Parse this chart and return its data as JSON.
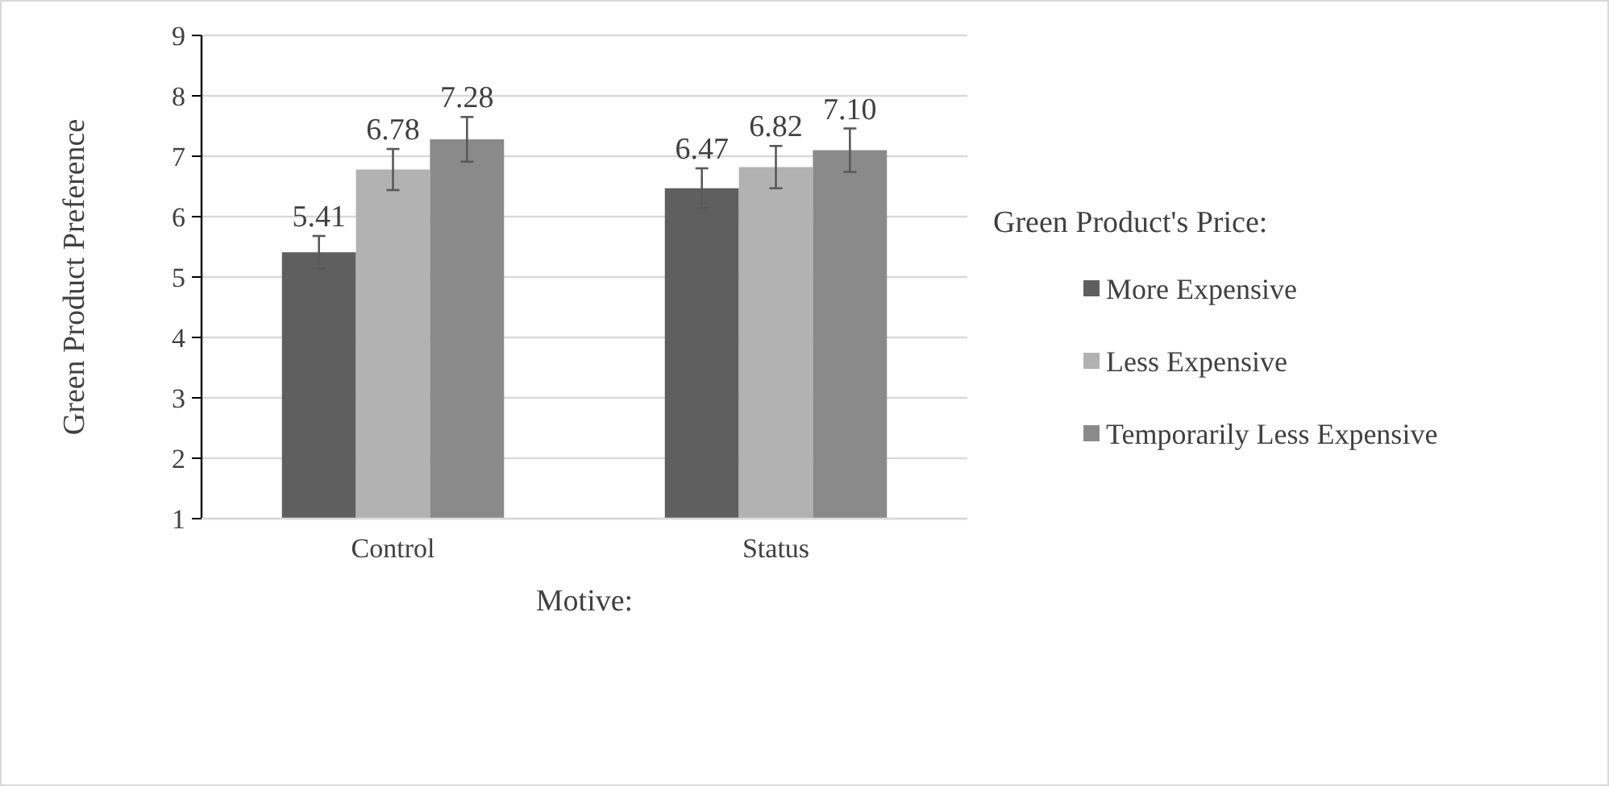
{
  "chart_data": {
    "type": "bar",
    "xlabel": "Motive:",
    "ylabel": "Green Product Preference",
    "legend_title": "Green Product's Price:",
    "categories": [
      "Control",
      "Status"
    ],
    "series": [
      {
        "name": "More Expensive",
        "color": "#5f5f5f",
        "values": [
          5.41,
          6.47
        ],
        "errors": [
          0.27,
          0.33
        ],
        "value_labels": [
          "5.41",
          "6.47"
        ]
      },
      {
        "name": "Less Expensive",
        "color": "#b2b2b2",
        "values": [
          6.78,
          6.82
        ],
        "errors": [
          0.34,
          0.35
        ],
        "value_labels": [
          "6.78",
          "6.82"
        ]
      },
      {
        "name": "Temporarily Less Expensive",
        "color": "#8a8a8a",
        "values": [
          7.28,
          7.1
        ],
        "errors": [
          0.37,
          0.36
        ],
        "value_labels": [
          "7.28",
          "7.10"
        ]
      }
    ],
    "ylim": [
      1,
      9
    ],
    "yticks": [
      1,
      2,
      3,
      4,
      5,
      6,
      7,
      8,
      9
    ],
    "grid": "y",
    "legend": "right"
  }
}
